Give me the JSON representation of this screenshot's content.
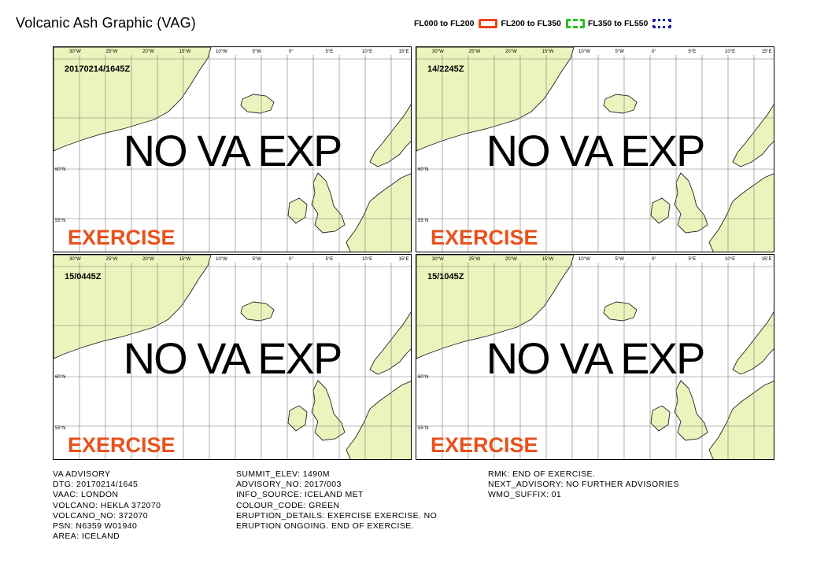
{
  "title": "Volcanic Ash Graphic (VAG)",
  "legend": [
    {
      "label": "FL000 to FL200",
      "color": "#e8431c",
      "style": "solid"
    },
    {
      "label": "FL200 to FL350",
      "color": "#27c41c",
      "style": "dashed"
    },
    {
      "label": "FL350 to FL550",
      "color": "#1c1ca8",
      "style": "dotted"
    }
  ],
  "map": {
    "land_color": "#eaf5bd",
    "top_labels": [
      "30°W",
      "25°W",
      "20°W",
      "15°W",
      "10°W",
      "5°W",
      "0°",
      "5°E",
      "10°E",
      "15°E"
    ],
    "lat_labels": [
      "60°N",
      "55°N"
    ]
  },
  "panels": [
    {
      "dtg": "20170214/1645Z",
      "status": "NO VA EXP",
      "watermark": "EXERCISE"
    },
    {
      "dtg": "14/2245Z",
      "status": "NO VA EXP",
      "watermark": "EXERCISE"
    },
    {
      "dtg": "15/0445Z",
      "status": "NO VA EXP",
      "watermark": "EXERCISE"
    },
    {
      "dtg": "15/1045Z",
      "status": "NO VA EXP",
      "watermark": "EXERCISE"
    }
  ],
  "advisory": {
    "col1": [
      "VA ADVISORY",
      "DTG: 20170214/1645",
      "VAAC: LONDON",
      "VOLCANO: HEKLA 372070",
      "VOLCANO_NO: 372070",
      "PSN: N6359 W01940",
      "AREA: ICELAND"
    ],
    "col2": [
      "SUMMIT_ELEV: 1490M",
      "ADVISORY_NO: 2017/003",
      "INFO_SOURCE: ICELAND MET",
      "COLOUR_CODE: GREEN",
      "ERUPTION_DETAILS: EXERCISE EXERCISE. NO",
      "ERUPTION ONGOING. END OF EXERCISE."
    ],
    "col3": [
      "RMK: END OF EXERCISE.",
      "NEXT_ADVISORY: NO FURTHER ADVISORIES",
      "WMO_SUFFIX: 01"
    ]
  }
}
